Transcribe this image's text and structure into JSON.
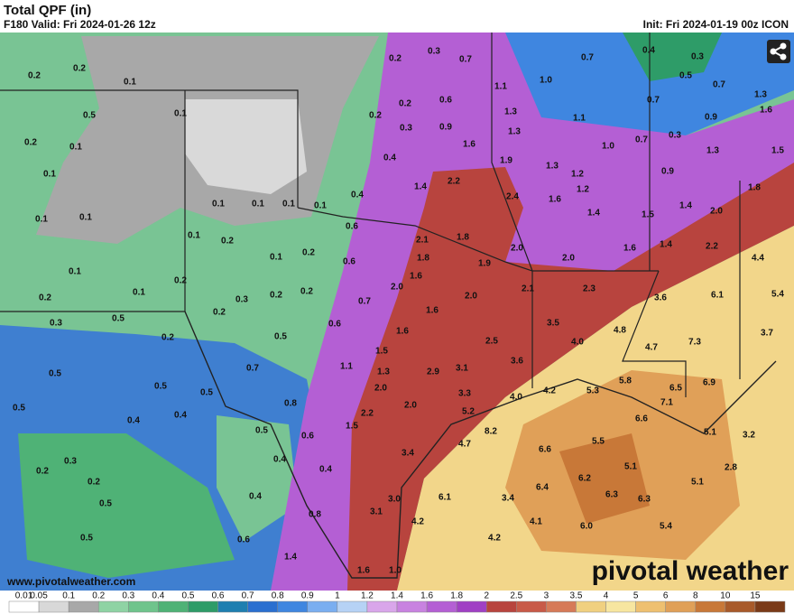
{
  "header": {
    "title": "Total QPF (in)",
    "valid": "F180 Valid: Fri 2024-01-26 12z",
    "init": "Init: Fri 2024-01-19 00z ICON"
  },
  "footer": {
    "url": "www.pivotalweather.com",
    "logo": "pivotal weather"
  },
  "labels": [
    "0.2",
    "0.2",
    "0.1",
    "0.5",
    "0.1",
    "0.2",
    "0.1",
    "0.1",
    "0.1",
    "0.1",
    "0.1",
    "0.1",
    "0.1",
    "0.1",
    "0.1",
    "0.2",
    "0.1",
    "0.1",
    "0.2",
    "0.2",
    "0.3",
    "0.2",
    "0.2",
    "0.2",
    "0.1",
    "0.2",
    "0.3",
    "0.5",
    "0.2",
    "0.5",
    "0.5",
    "0.5",
    "0.7",
    "0.5",
    "0.6",
    "0.7",
    "0.6",
    "0.6",
    "0.4",
    "0.4",
    "0.2",
    "0.3",
    "0.2",
    "0.2",
    "0.3",
    "0.7",
    "0.6",
    "0.9",
    "1.1",
    "1.0",
    "0.7",
    "0.4",
    "0.3",
    "0.5",
    "0.7",
    "1.3",
    "1.6",
    "0.7",
    "0.9",
    "1.3",
    "1.1",
    "1.3",
    "1.0",
    "0.7",
    "0.3",
    "1.3",
    "1.5",
    "1.6",
    "1.9",
    "1.3",
    "1.2",
    "1.2",
    "0.9",
    "1.8",
    "2.2",
    "1.4",
    "2.4",
    "1.6",
    "1.4",
    "1.5",
    "1.4",
    "2.0",
    "2.1",
    "1.8",
    "2.0",
    "1.6",
    "1.4",
    "2.2",
    "4.4",
    "1.8",
    "1.9",
    "2.0",
    "2.0",
    "1.6",
    "2.0",
    "2.1",
    "2.3",
    "3.6",
    "6.1",
    "5.4",
    "1.6",
    "1.6",
    "1.5",
    "2.5",
    "3.5",
    "4.0",
    "4.8",
    "4.7",
    "7.3",
    "3.7",
    "1.1",
    "1.3",
    "2.9",
    "3.1",
    "3.6",
    "2.0",
    "2.0",
    "3.3",
    "4.0",
    "4.2",
    "5.3",
    "5.8",
    "6.5",
    "6.9",
    "2.2",
    "5.2",
    "8.2",
    "7.1",
    "6.6",
    "5.1",
    "3.2",
    "1.5",
    "4.7",
    "0.8",
    "0.6",
    "0.5",
    "0.4",
    "0.4",
    "0.4",
    "0.4",
    "0.5",
    "0.2",
    "0.3",
    "0.2",
    "0.5",
    "0.4",
    "0.5",
    "3.4",
    "6.6",
    "5.5",
    "5.1",
    "5.1",
    "2.8",
    "6.2",
    "6.4",
    "6.3",
    "6.3",
    "3.0",
    "6.1",
    "3.4",
    "0.8",
    "3.1",
    "4.2",
    "4.1",
    "6.0",
    "5.4",
    "0.6",
    "4.2",
    "1.4",
    "1.6",
    "1.0"
  ],
  "colorbar": [
    {
      "label": "0.01",
      "color": "#ffffff"
    },
    {
      "label": "0.05",
      "color": "#d8d8d8"
    },
    {
      "label": "0.1",
      "color": "#a8a8a8"
    },
    {
      "label": "0.2",
      "color": "#8fd3a4"
    },
    {
      "label": "0.3",
      "color": "#6fc48c"
    },
    {
      "label": "0.4",
      "color": "#4fb276"
    },
    {
      "label": "0.5",
      "color": "#2e9c68"
    },
    {
      "label": "0.6",
      "color": "#1f7fb0"
    },
    {
      "label": "0.7",
      "color": "#2a6fd0"
    },
    {
      "label": "0.8",
      "color": "#3f86e0"
    },
    {
      "label": "0.9",
      "color": "#7aaef0"
    },
    {
      "label": "1",
      "color": "#b6d2f5"
    },
    {
      "label": "1.2",
      "color": "#d9a6ea"
    },
    {
      "label": "1.4",
      "color": "#c882e0"
    },
    {
      "label": "1.6",
      "color": "#b45fd4"
    },
    {
      "label": "1.8",
      "color": "#a040c4"
    },
    {
      "label": "2",
      "color": "#b8443e"
    },
    {
      "label": "2.5",
      "color": "#c85a48"
    },
    {
      "label": "3",
      "color": "#d67a58"
    },
    {
      "label": "3.5",
      "color": "#f0d080"
    },
    {
      "label": "4",
      "color": "#f7e6a0"
    },
    {
      "label": "5",
      "color": "#eec070"
    },
    {
      "label": "6",
      "color": "#e0a058"
    },
    {
      "label": "8",
      "color": "#c87838"
    },
    {
      "label": "10",
      "color": "#a85a2a"
    },
    {
      "label": "15",
      "color": "#7a3a18"
    }
  ]
}
